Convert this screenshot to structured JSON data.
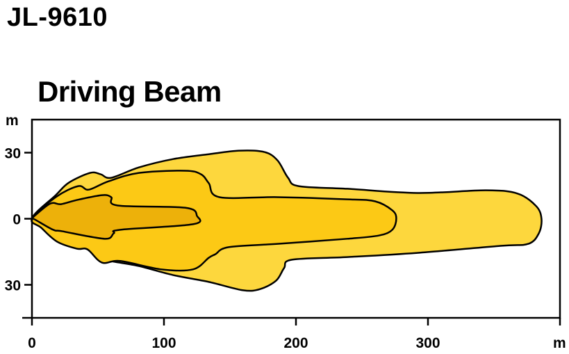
{
  "header": {
    "model": "JL-9610",
    "title": "Driving Beam"
  },
  "chart_data": {
    "type": "area",
    "title": "Driving Beam",
    "xlabel": "m",
    "ylabel": "m",
    "xlim": [
      0,
      400
    ],
    "ylim": [
      -45,
      45
    ],
    "grid": false,
    "x_ticks": [
      {
        "value": 0,
        "label": "0"
      },
      {
        "value": 100,
        "label": "100"
      },
      {
        "value": 200,
        "label": "200"
      },
      {
        "value": 300,
        "label": "300"
      }
    ],
    "y_ticks": [
      {
        "value": 30,
        "label": "30"
      },
      {
        "value": 0,
        "label": "0"
      },
      {
        "value": -30,
        "label": "30"
      }
    ],
    "series": [
      {
        "color": "#FDD73D",
        "points": [
          [
            0,
            0
          ],
          [
            18,
            10.7
          ],
          [
            28,
            16.4
          ],
          [
            44,
            20.8
          ],
          [
            52,
            20.2
          ],
          [
            60,
            18.6
          ],
          [
            81,
            23.3
          ],
          [
            107,
            27.1
          ],
          [
            134,
            29.3
          ],
          [
            157,
            30.9
          ],
          [
            176,
            30.3
          ],
          [
            186,
            26.5
          ],
          [
            194,
            18.6
          ],
          [
            202,
            14.8
          ],
          [
            239,
            13.6
          ],
          [
            292,
            11.7
          ],
          [
            344,
            12.9
          ],
          [
            368,
            11.4
          ],
          [
            382,
            5.7
          ],
          [
            386,
            0
          ],
          [
            384,
            -6.6
          ],
          [
            376,
            -11.4
          ],
          [
            355,
            -12.3
          ],
          [
            292,
            -15.5
          ],
          [
            239,
            -17.4
          ],
          [
            197,
            -18.6
          ],
          [
            191,
            -22.4
          ],
          [
            185,
            -28.1
          ],
          [
            173,
            -31.9
          ],
          [
            160,
            -32.5
          ],
          [
            134,
            -28.7
          ],
          [
            107,
            -25.6
          ],
          [
            81,
            -21.5
          ],
          [
            63,
            -19.6
          ],
          [
            52,
            -18.3
          ],
          [
            42,
            -13.6
          ],
          [
            28,
            -9.8
          ],
          [
            13,
            -4.4
          ]
        ]
      },
      {
        "color": "#FCC915",
        "points": [
          [
            0,
            0
          ],
          [
            18,
            9.8
          ],
          [
            35,
            14.8
          ],
          [
            43,
            13.2
          ],
          [
            58,
            17
          ],
          [
            81,
            20.8
          ],
          [
            116,
            21.8
          ],
          [
            128,
            20.2
          ],
          [
            134,
            16.1
          ],
          [
            142,
            9.8
          ],
          [
            186,
            9.8
          ],
          [
            239,
            8.8
          ],
          [
            260,
            7.9
          ],
          [
            273,
            3.8
          ],
          [
            276,
            0
          ],
          [
            273,
            -5
          ],
          [
            263,
            -7.6
          ],
          [
            239,
            -9.1
          ],
          [
            186,
            -11.4
          ],
          [
            149,
            -12.9
          ],
          [
            139,
            -16.1
          ],
          [
            134,
            -17.7
          ],
          [
            122,
            -23
          ],
          [
            98,
            -23
          ],
          [
            67,
            -19.2
          ],
          [
            53,
            -19.9
          ],
          [
            42,
            -13.9
          ],
          [
            34,
            -13.6
          ],
          [
            19,
            -10.4
          ],
          [
            7,
            -4.1
          ]
        ]
      },
      {
        "color": "#EDB10A",
        "points": [
          [
            0,
            0
          ],
          [
            2,
            1.3
          ],
          [
            14,
            6.9
          ],
          [
            22,
            6.6
          ],
          [
            34,
            8.5
          ],
          [
            53,
            10.7
          ],
          [
            60,
            9.8
          ],
          [
            65,
            6
          ],
          [
            116,
            5
          ],
          [
            125,
            1.3
          ],
          [
            122,
            -2.5
          ],
          [
            67,
            -5
          ],
          [
            62,
            -6.6
          ],
          [
            55,
            -9.1
          ],
          [
            23,
            -5.7
          ],
          [
            16,
            -5
          ],
          [
            2,
            -0.3
          ]
        ]
      }
    ]
  }
}
